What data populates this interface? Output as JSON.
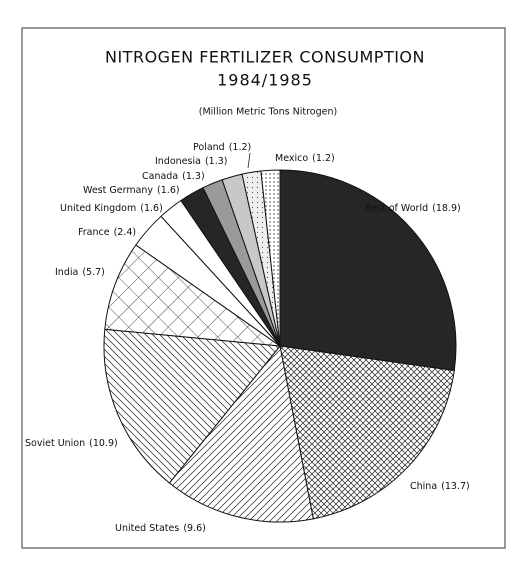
{
  "chart_data": {
    "type": "pie",
    "title": "NITROGEN FERTILIZER CONSUMPTION",
    "subtitle": "1984/1985",
    "unit_note": "(Million Metric Tons Nitrogen)",
    "categories": [
      "Rest of World",
      "China",
      "United States",
      "Soviet Union",
      "India",
      "France",
      "United Kingdom",
      "West Germany",
      "Canada",
      "Indonesia",
      "Poland",
      "Mexico"
    ],
    "values": [
      18.9,
      13.7,
      9.6,
      10.9,
      5.7,
      2.4,
      1.6,
      1.6,
      1.3,
      1.3,
      1.2,
      1.2
    ],
    "value_labels": [
      "(18.9)",
      "(13.7)",
      "(9.6)",
      "(10.9)",
      "(5.7)",
      "(2.4)",
      "(1.6)",
      "(1.6)",
      "(1.3)",
      "(1.3)",
      "(1.2)",
      "(1.2)"
    ],
    "patterns": [
      "dark",
      "crosshatch-fine",
      "diag-right",
      "diag-left",
      "grid",
      "white",
      "white",
      "dark",
      "gray",
      "light-gray",
      "dots-light",
      "dots"
    ],
    "start_angle": 0,
    "direction": "clockwise"
  }
}
